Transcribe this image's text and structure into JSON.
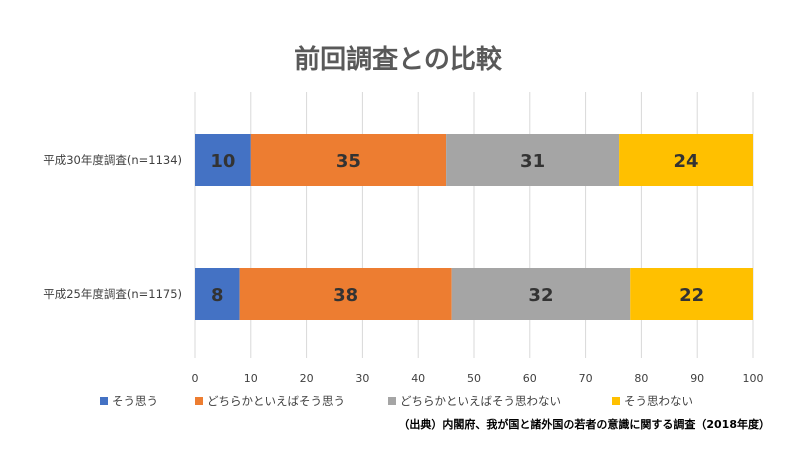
{
  "chart_data": {
    "type": "bar",
    "orientation": "horizontal",
    "stacked": true,
    "title": "前回調査との比較",
    "categories": [
      "平成30年度調査(n=1134)",
      "平成25年度調査(n=1175)"
    ],
    "series": [
      {
        "name": "そう思う",
        "values": [
          10,
          8
        ],
        "color": "#4472C4"
      },
      {
        "name": "どちらかといえばそう思う",
        "values": [
          35,
          38
        ],
        "color": "#ED7D31"
      },
      {
        "name": "どちらかといえばそう思わない",
        "values": [
          31,
          32
        ],
        "color": "#A5A5A5"
      },
      {
        "name": "そう思わない",
        "values": [
          24,
          22
        ],
        "color": "#FFC000"
      }
    ],
    "xlim": [
      0,
      100
    ],
    "x_ticks": [
      0,
      10,
      20,
      30,
      40,
      50,
      60,
      70,
      80,
      90,
      100
    ],
    "grid": true,
    "legend_position": "bottom-left"
  },
  "source_note": "（出典）内閣府、我が国と諸外国の若者の意識に関する調査（2018年度）"
}
